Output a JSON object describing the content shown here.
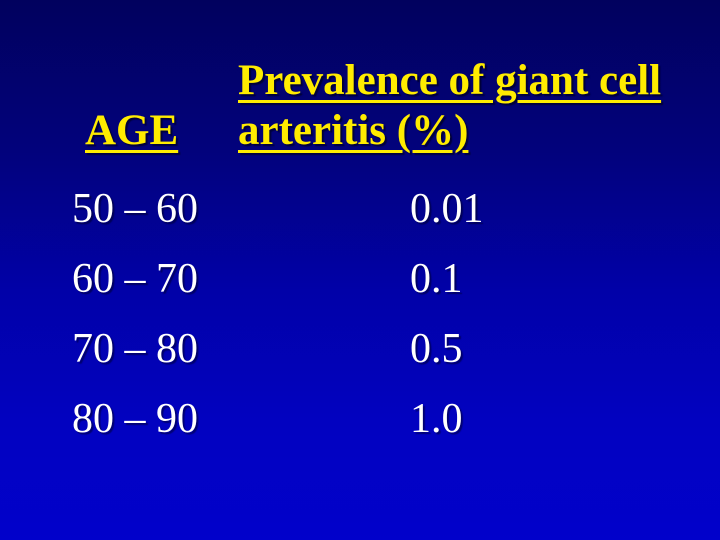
{
  "slide": {
    "background": {
      "gradient_top_color": "#01015e",
      "gradient_bottom_color": "#0101cb"
    },
    "colors": {
      "header_text": "#ffec00",
      "body_text": "#ffffff"
    },
    "table": {
      "headers": {
        "age": "AGE",
        "prevalence": "Prevalence of giant cell arteritis (%)"
      },
      "rows": [
        {
          "age": "50 – 60",
          "prevalence": "0.01"
        },
        {
          "age": "60 – 70",
          "prevalence": "0.1"
        },
        {
          "age": "70 – 80",
          "prevalence": "0.5"
        },
        {
          "age": "80 – 90",
          "prevalence": "1.0"
        }
      ]
    }
  },
  "chart_data": {
    "type": "table",
    "title": "Prevalence of giant cell arteritis (%)",
    "columns": [
      "AGE",
      "Prevalence of giant cell arteritis (%)"
    ],
    "rows": [
      [
        "50 – 60",
        "0.01"
      ],
      [
        "60 – 70",
        "0.1"
      ],
      [
        "70 – 80",
        "0.5"
      ],
      [
        "80 – 90",
        "1.0"
      ]
    ],
    "categories": [
      "50 – 60",
      "60 – 70",
      "70 – 80",
      "80 – 90"
    ],
    "values": [
      0.01,
      0.1,
      0.5,
      1.0
    ]
  }
}
